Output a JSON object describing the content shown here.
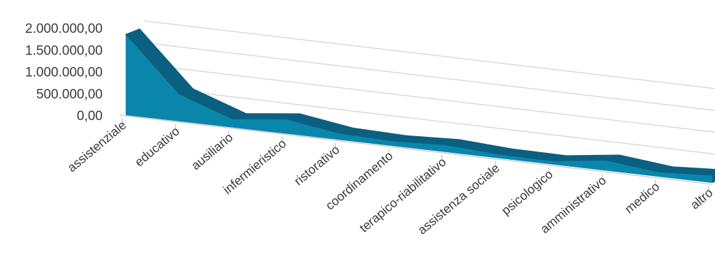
{
  "chart_data": {
    "type": "area",
    "style": "3d",
    "title": "",
    "xlabel": "",
    "ylabel": "",
    "categories": [
      "assistenziale",
      "educativo",
      "ausiliario",
      "infermieristico",
      "ristorativo",
      "coordinamento",
      "terapico-riabilitativo",
      "assistenza sociale",
      "psicologico",
      "amministrativo",
      "medico",
      "altro"
    ],
    "values": [
      1850000,
      620000,
      190000,
      330000,
      145000,
      110000,
      160000,
      85000,
      75000,
      230000,
      100000,
      170000
    ],
    "ylim": [
      0,
      2000000
    ],
    "y_ticks": [
      "0,00",
      "500.000,00",
      "1.000.000,00",
      "1.500.000,00",
      "2.000.000,00"
    ],
    "grid": true,
    "colors": {
      "front": "#0a86ab",
      "top": "#0b5f80",
      "grid": "#d4d4d4",
      "text": "#3a3a3a"
    }
  }
}
